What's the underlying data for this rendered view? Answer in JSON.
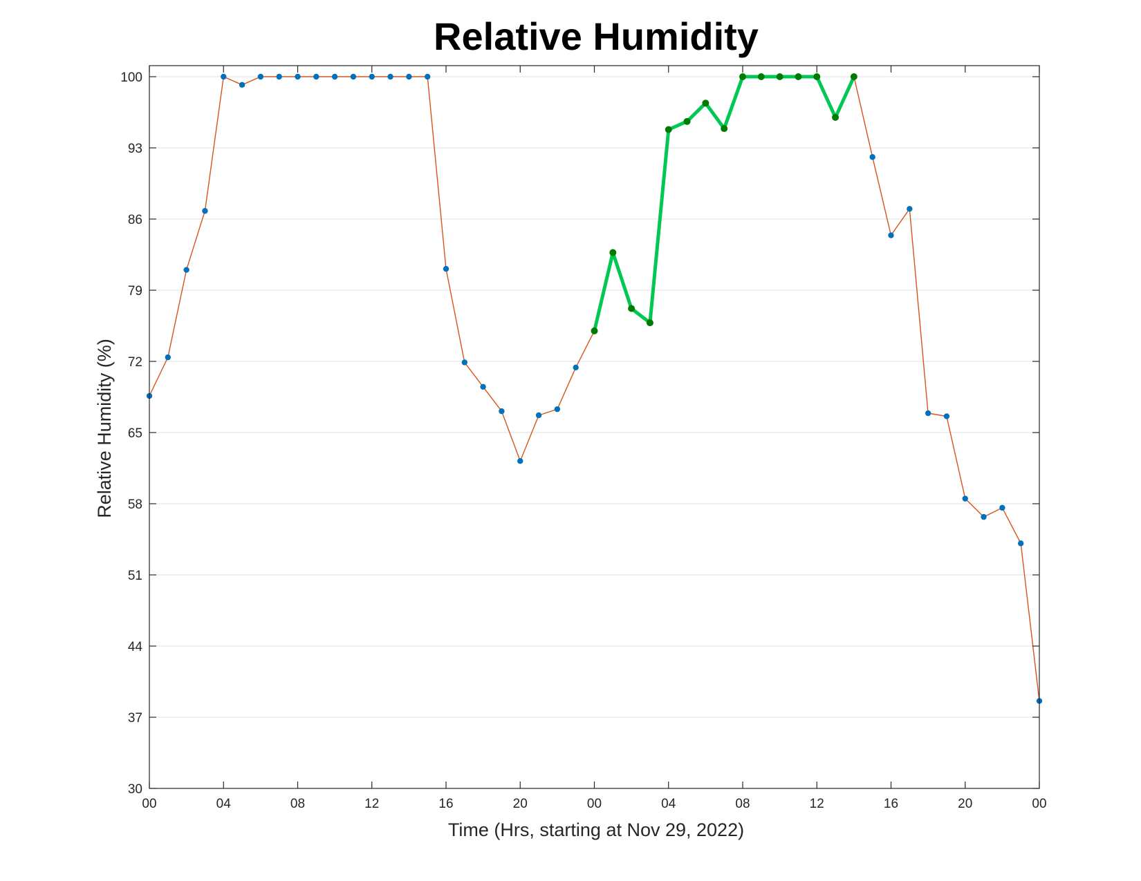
{
  "chart_data": {
    "type": "line",
    "title": "Relative Humidity",
    "xlabel": "Time (Hrs, starting at Nov 29, 2022)",
    "ylabel": "Relative Humidity (%)",
    "xlim": [
      0,
      48
    ],
    "ylim": [
      30,
      100
    ],
    "x_ticks": [
      0,
      4,
      8,
      12,
      16,
      20,
      24,
      28,
      32,
      36,
      40,
      44,
      48
    ],
    "x_tick_labels": [
      "00",
      "04",
      "08",
      "12",
      "16",
      "20",
      "00",
      "04",
      "08",
      "12",
      "16",
      "20",
      "00"
    ],
    "y_ticks": [
      30,
      37,
      44,
      51,
      58,
      65,
      72,
      79,
      86,
      93,
      100
    ],
    "y_tick_labels": [
      "30",
      "37",
      "44",
      "51",
      "58",
      "65",
      "72",
      "79",
      "86",
      "93",
      "100"
    ],
    "grid": "horizontal",
    "series": [
      {
        "style": "thin line with markers",
        "line_color": "#d95319",
        "marker_color": "#0072bd",
        "x": [
          0,
          1,
          2,
          3,
          4,
          5,
          6,
          7,
          8,
          9,
          10,
          11,
          12,
          13,
          14,
          15,
          16,
          17,
          18,
          19,
          20,
          21,
          22,
          23,
          24,
          25,
          26,
          27,
          28,
          29,
          30,
          31,
          32,
          33,
          34,
          35,
          36,
          37,
          38,
          39,
          40,
          41,
          42,
          43,
          44,
          45,
          46,
          47,
          48
        ],
        "y": [
          68.6,
          72.4,
          81,
          86.8,
          100,
          99.2,
          100,
          100,
          100,
          100,
          100,
          100,
          100,
          100,
          100,
          100,
          81.1,
          71.9,
          69.5,
          67.1,
          62.2,
          66.7,
          67.3,
          71.4,
          75,
          82.7,
          77.2,
          75.8,
          94.8,
          95.6,
          97.4,
          94.9,
          100,
          100,
          100,
          100,
          100,
          96,
          100,
          92.1,
          84.4,
          87,
          66.9,
          66.6,
          58.5,
          56.7,
          57.6,
          54.1,
          38.6
        ]
      },
      {
        "style": "thick highlighted line",
        "line_color": "#00c853",
        "marker_color": "#007a00",
        "x": [
          24,
          25,
          26,
          27,
          28,
          29,
          30,
          31,
          32,
          33,
          34,
          35,
          36,
          37,
          38
        ],
        "y": [
          75,
          82.7,
          77.2,
          75.8,
          94.8,
          95.6,
          97.4,
          94.9,
          100,
          100,
          100,
          100,
          100,
          96,
          100
        ]
      }
    ]
  }
}
